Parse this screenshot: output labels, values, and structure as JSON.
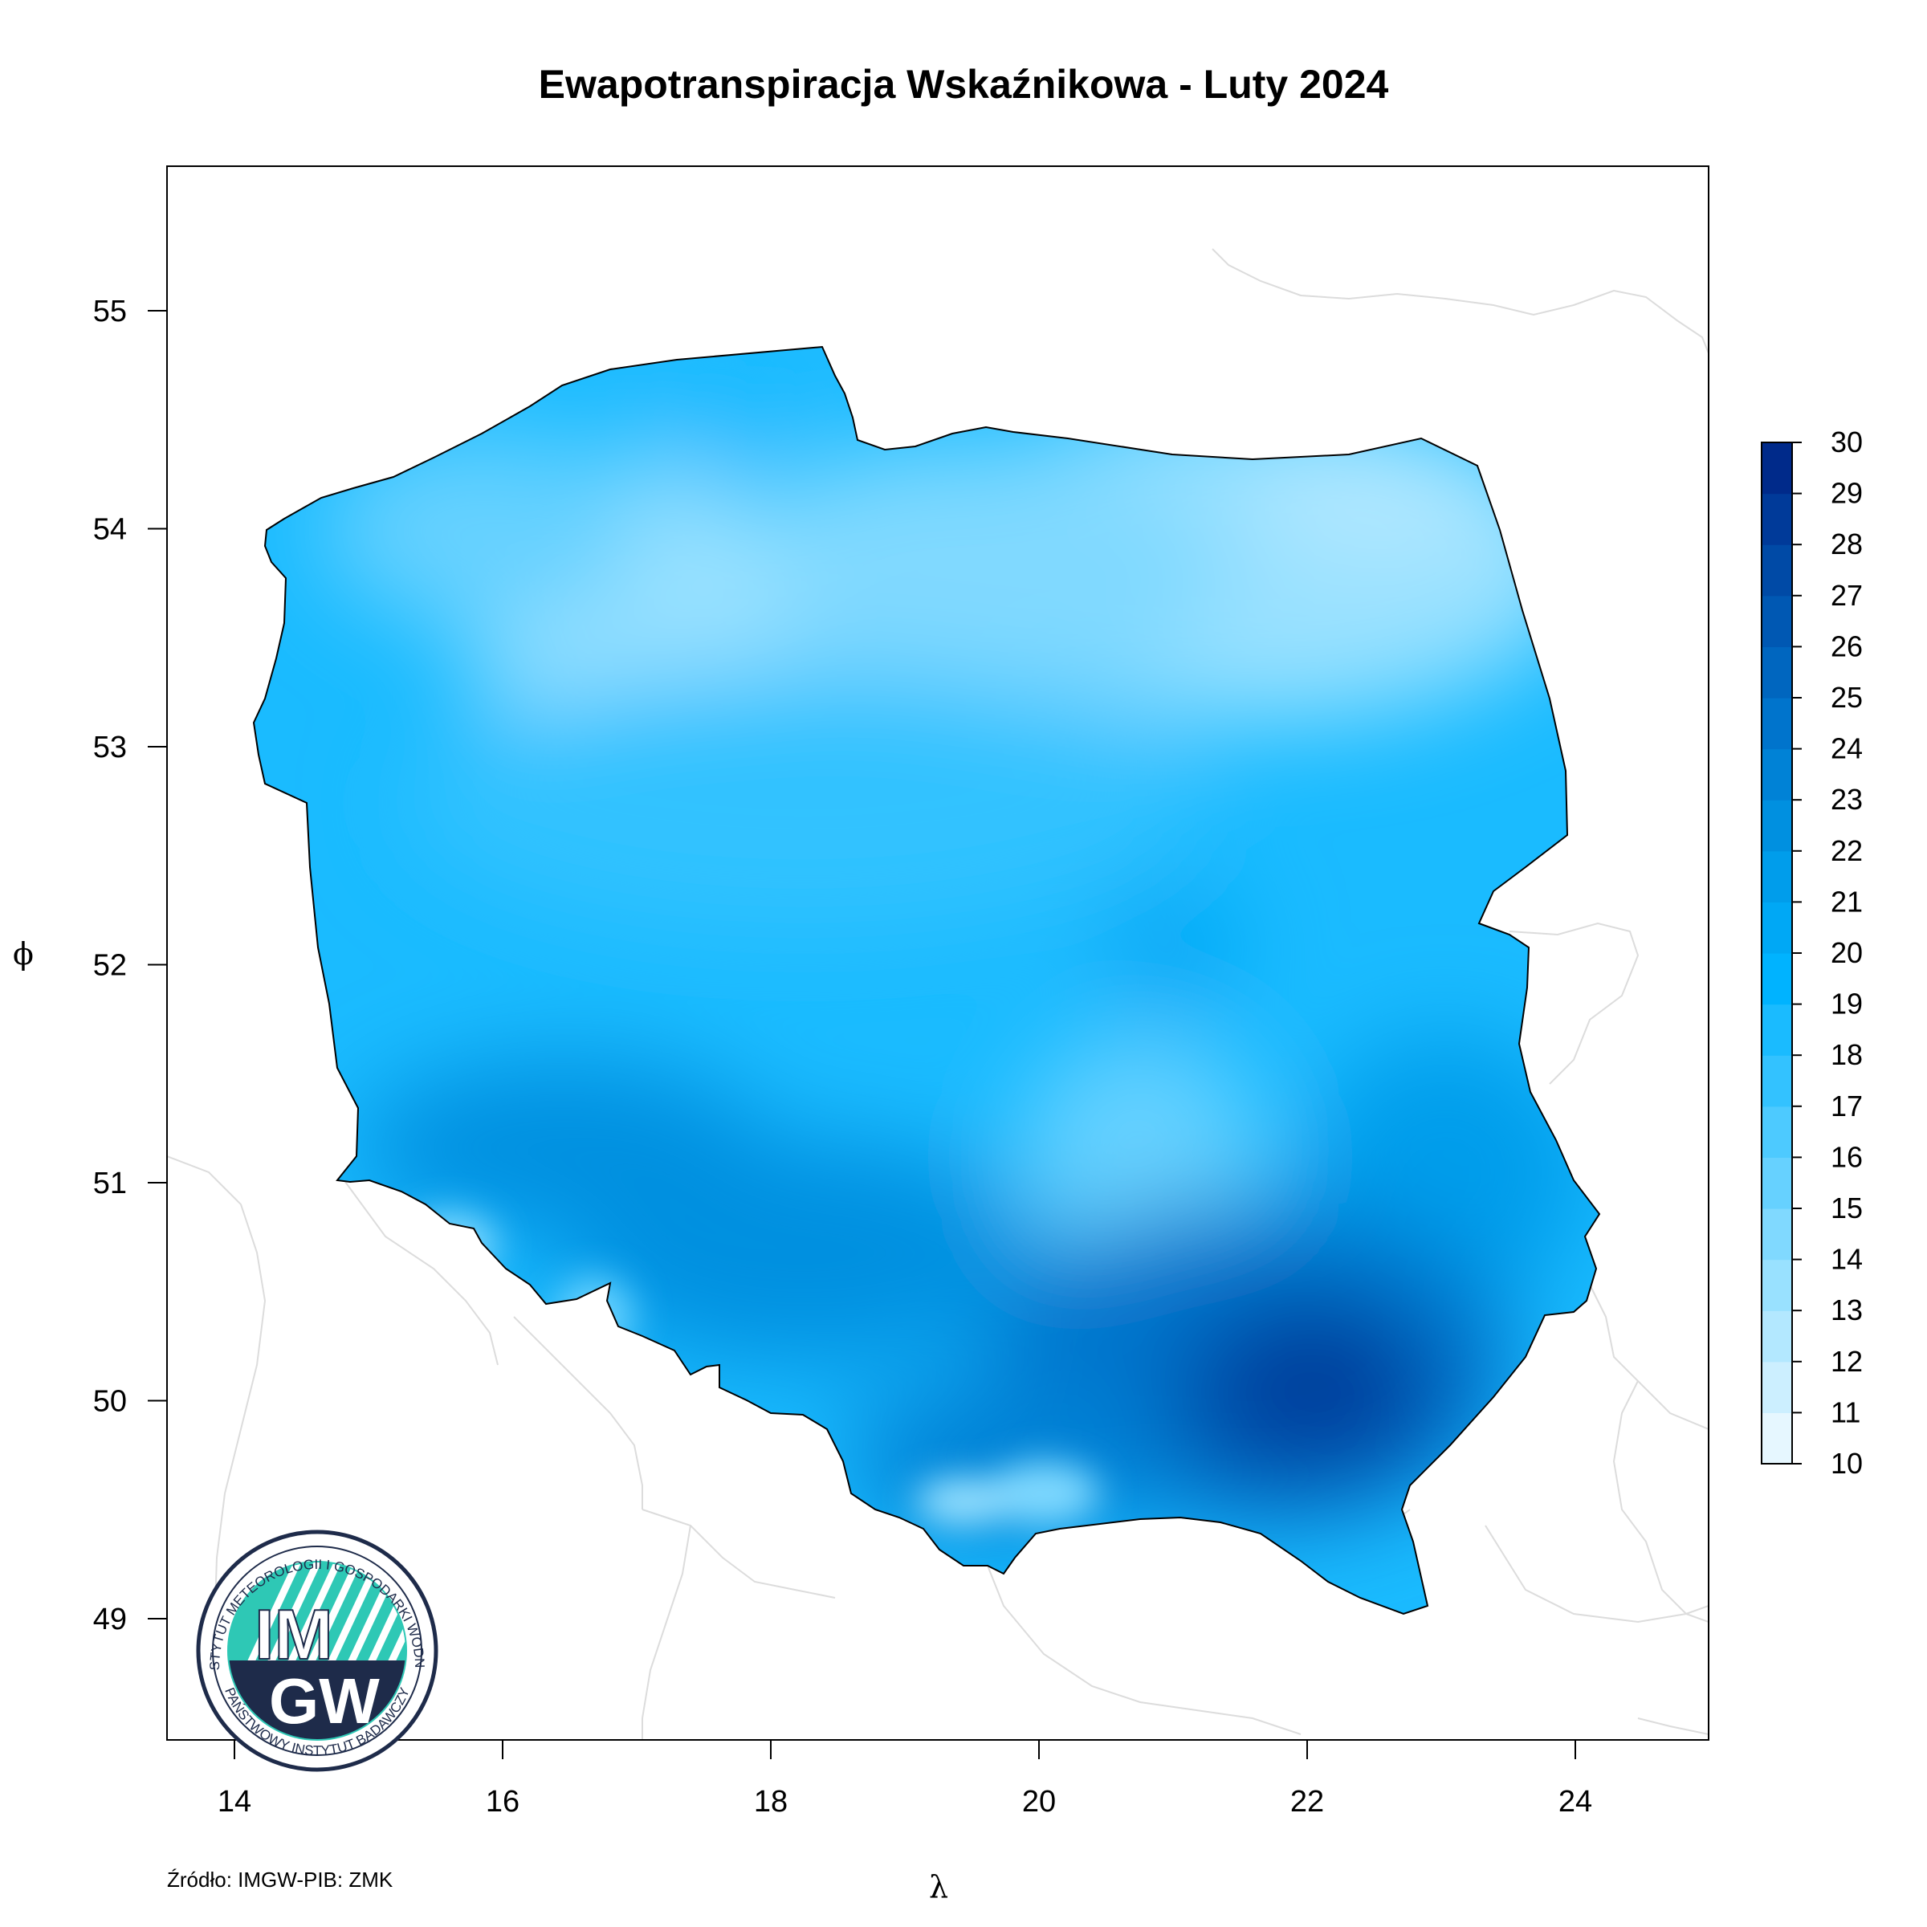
{
  "title": "Ewapotranspiracja Wskaźnikowa - Luty 2024",
  "source": "Źródło: IMGW-PIB: ZMK",
  "x_axis": {
    "name": "λ",
    "ticks": [
      "14",
      "16",
      "18",
      "20",
      "22",
      "24"
    ]
  },
  "y_axis": {
    "name": "ϕ",
    "ticks": [
      "49",
      "50",
      "51",
      "52",
      "53",
      "54",
      "55"
    ]
  },
  "legend": {
    "min": 10,
    "max": 30,
    "labels": [
      "10",
      "11",
      "12",
      "13",
      "14",
      "15",
      "16",
      "17",
      "18",
      "19",
      "20",
      "21",
      "22",
      "23",
      "24",
      "25",
      "26",
      "27",
      "28",
      "29",
      "30"
    ],
    "colors": [
      "#ffffff",
      "#e6f7ff",
      "#ccefff",
      "#b3e8ff",
      "#99e1ff",
      "#80d9ff",
      "#66d1ff",
      "#4dcaff",
      "#33c2ff",
      "#1abbff",
      "#00b3ff",
      "#00a8f5",
      "#009deb",
      "#0090e0",
      "#0082d6",
      "#0074cc",
      "#0066bf",
      "#0058b3",
      "#004aa6",
      "#003a99",
      "#002a8a"
    ]
  },
  "logo": {
    "big_text_top": "IM",
    "big_text_bottom": "GW",
    "ring_text_top": "INSTYTUT METEOROLOGII I GOSPODARKI WODNEJ",
    "ring_text_bottom": "PAŃSTWOWY INSTYTUT BADAWCZY"
  },
  "map": {
    "country": "Polska",
    "variable": "ewapotranspiracja wskaźnikowa",
    "value_regions": [
      {
        "name": "north-east",
        "value": 14
      },
      {
        "name": "central-north",
        "value": 16
      },
      {
        "name": "pomerania-lake-district",
        "value": 15
      },
      {
        "name": "rozewie-coast",
        "value": 20
      },
      {
        "name": "central",
        "value": 19
      },
      {
        "name": "central-lowland",
        "value": 20
      },
      {
        "name": "kielce-upland",
        "value": 16
      },
      {
        "name": "silesia-lower",
        "value": 22
      },
      {
        "name": "south-east",
        "value": 25
      },
      {
        "name": "bieszczady-foothills",
        "value": 28
      },
      {
        "name": "sudetes-peaks",
        "value": 16
      },
      {
        "name": "tatra-peaks",
        "value": 14
      }
    ]
  }
}
